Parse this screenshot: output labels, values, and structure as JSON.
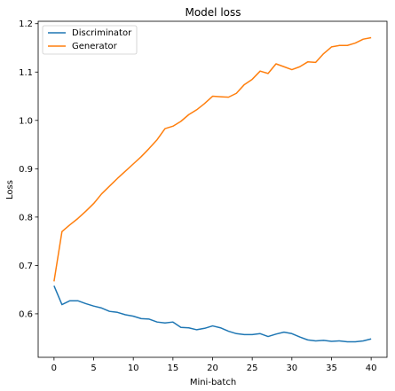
{
  "chart_data": {
    "type": "line",
    "title": "Model loss",
    "xlabel": "Mini-batch",
    "ylabel": "Loss",
    "xlim": [
      -2,
      42
    ],
    "ylim": [
      0.51,
      1.205
    ],
    "xticks": [
      0,
      5,
      10,
      15,
      20,
      25,
      30,
      35,
      40
    ],
    "yticks": [
      0.6,
      0.7,
      0.8,
      0.9,
      1.0,
      1.1,
      1.2
    ],
    "ytick_labels": [
      "0.6",
      "0.7",
      "0.8",
      "0.9",
      "1.0",
      "1.1",
      "1.2"
    ],
    "legend_position": "top-left",
    "grid": false,
    "x": [
      0,
      1,
      2,
      3,
      4,
      5,
      6,
      7,
      8,
      9,
      10,
      11,
      12,
      13,
      14,
      15,
      16,
      17,
      18,
      19,
      20,
      21,
      22,
      23,
      24,
      25,
      26,
      27,
      28,
      29,
      30,
      31,
      32,
      33,
      34,
      35,
      36,
      37,
      38,
      39,
      40
    ],
    "series": [
      {
        "name": "Discriminator",
        "color": "#1f77b4",
        "values": [
          0.658,
          0.619,
          0.627,
          0.627,
          0.621,
          0.616,
          0.612,
          0.605,
          0.603,
          0.598,
          0.595,
          0.59,
          0.589,
          0.583,
          0.581,
          0.583,
          0.572,
          0.571,
          0.567,
          0.57,
          0.575,
          0.571,
          0.564,
          0.559,
          0.557,
          0.557,
          0.559,
          0.553,
          0.558,
          0.562,
          0.559,
          0.552,
          0.546,
          0.544,
          0.545,
          0.543,
          0.544,
          0.542,
          0.542,
          0.544,
          0.548
        ]
      },
      {
        "name": "Generator",
        "color": "#ff7f0e",
        "values": [
          0.667,
          0.77,
          0.784,
          0.797,
          0.812,
          0.828,
          0.848,
          0.864,
          0.88,
          0.895,
          0.91,
          0.925,
          0.942,
          0.96,
          0.983,
          0.988,
          0.998,
          1.012,
          1.022,
          1.035,
          1.05,
          1.049,
          1.048,
          1.056,
          1.074,
          1.085,
          1.102,
          1.097,
          1.117,
          1.111,
          1.105,
          1.111,
          1.121,
          1.12,
          1.138,
          1.152,
          1.155,
          1.155,
          1.16,
          1.168,
          1.171
        ]
      }
    ]
  }
}
